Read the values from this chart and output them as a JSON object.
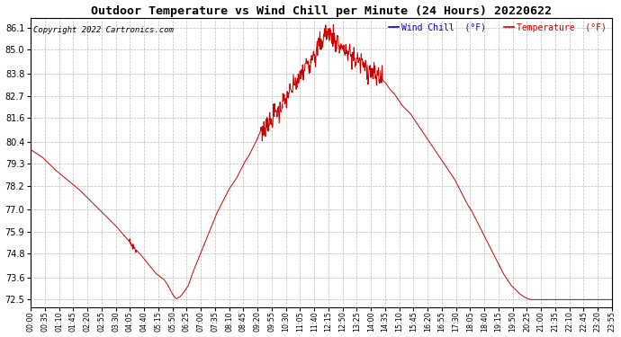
{
  "title": "Outdoor Temperature vs Wind Chill per Minute (24 Hours) 20220622",
  "copyright": "Copyright 2022 Cartronics.com",
  "legend_wind_chill": "Wind Chill  (°F)",
  "legend_temperature": "Temperature  (°F)",
  "line_color": "#cc0000",
  "wind_chill_color": "#0000cc",
  "temp_color": "#cc0000",
  "background_color": "#ffffff",
  "grid_color": "#bbbbbb",
  "title_color": "#000000",
  "copyright_color": "#000000",
  "yticks": [
    72.5,
    73.6,
    74.8,
    75.9,
    77.0,
    78.2,
    79.3,
    80.4,
    81.6,
    82.7,
    83.8,
    85.0,
    86.1
  ],
  "ylim": [
    72.1,
    86.6
  ],
  "xtick_labels": [
    "00:00",
    "00:35",
    "01:10",
    "01:45",
    "02:20",
    "02:55",
    "03:30",
    "04:05",
    "04:40",
    "05:15",
    "05:50",
    "06:25",
    "07:00",
    "07:35",
    "08:10",
    "08:45",
    "09:20",
    "09:55",
    "10:30",
    "11:05",
    "11:40",
    "12:15",
    "12:50",
    "13:25",
    "14:00",
    "14:35",
    "15:10",
    "15:45",
    "16:20",
    "16:55",
    "17:30",
    "18:05",
    "18:40",
    "19:15",
    "19:50",
    "20:25",
    "21:00",
    "21:35",
    "22:10",
    "22:45",
    "23:20",
    "23:55"
  ],
  "keypoints": [
    [
      0,
      80.0
    ],
    [
      30,
      79.6
    ],
    [
      60,
      79.0
    ],
    [
      90,
      78.5
    ],
    [
      120,
      78.0
    ],
    [
      150,
      77.4
    ],
    [
      180,
      76.8
    ],
    [
      210,
      76.2
    ],
    [
      240,
      75.5
    ],
    [
      260,
      75.0
    ],
    [
      270,
      74.8
    ],
    [
      290,
      74.3
    ],
    [
      310,
      73.8
    ],
    [
      330,
      73.5
    ],
    [
      340,
      73.2
    ],
    [
      345,
      73.0
    ],
    [
      350,
      72.8
    ],
    [
      355,
      72.65
    ],
    [
      358,
      72.58
    ],
    [
      360,
      72.55
    ],
    [
      362,
      72.55
    ],
    [
      365,
      72.6
    ],
    [
      370,
      72.65
    ],
    [
      380,
      72.9
    ],
    [
      390,
      73.2
    ],
    [
      395,
      73.5
    ],
    [
      400,
      73.8
    ],
    [
      410,
      74.3
    ],
    [
      420,
      74.8
    ],
    [
      430,
      75.3
    ],
    [
      440,
      75.8
    ],
    [
      450,
      76.3
    ],
    [
      460,
      76.8
    ],
    [
      470,
      77.2
    ],
    [
      480,
      77.6
    ],
    [
      490,
      78.0
    ],
    [
      500,
      78.3
    ],
    [
      510,
      78.6
    ],
    [
      520,
      79.0
    ],
    [
      530,
      79.4
    ],
    [
      540,
      79.7
    ],
    [
      550,
      80.1
    ],
    [
      560,
      80.5
    ],
    [
      570,
      81.0
    ],
    [
      575,
      80.7
    ],
    [
      580,
      81.2
    ],
    [
      590,
      81.5
    ],
    [
      595,
      81.3
    ],
    [
      600,
      81.7
    ],
    [
      610,
      82.0
    ],
    [
      615,
      81.8
    ],
    [
      620,
      82.2
    ],
    [
      625,
      82.5
    ],
    [
      630,
      82.3
    ],
    [
      635,
      82.7
    ],
    [
      640,
      83.0
    ],
    [
      645,
      82.8
    ],
    [
      650,
      83.2
    ],
    [
      655,
      83.5
    ],
    [
      660,
      83.2
    ],
    [
      665,
      83.6
    ],
    [
      670,
      84.0
    ],
    [
      675,
      83.7
    ],
    [
      680,
      84.2
    ],
    [
      685,
      84.5
    ],
    [
      690,
      84.2
    ],
    [
      695,
      84.6
    ],
    [
      700,
      85.0
    ],
    [
      705,
      84.6
    ],
    [
      710,
      85.1
    ],
    [
      715,
      85.5
    ],
    [
      720,
      85.2
    ],
    [
      725,
      85.7
    ],
    [
      730,
      86.0
    ],
    [
      735,
      85.6
    ],
    [
      740,
      86.0
    ],
    [
      745,
      85.5
    ],
    [
      750,
      85.8
    ],
    [
      755,
      85.2
    ],
    [
      760,
      85.6
    ],
    [
      765,
      85.0
    ],
    [
      770,
      85.3
    ],
    [
      775,
      84.8
    ],
    [
      780,
      85.1
    ],
    [
      785,
      84.6
    ],
    [
      790,
      85.0
    ],
    [
      795,
      84.5
    ],
    [
      800,
      84.8
    ],
    [
      805,
      84.3
    ],
    [
      810,
      84.7
    ],
    [
      815,
      84.2
    ],
    [
      820,
      84.6
    ],
    [
      825,
      84.0
    ],
    [
      830,
      84.3
    ],
    [
      835,
      83.8
    ],
    [
      840,
      84.1
    ],
    [
      845,
      83.7
    ],
    [
      850,
      83.9
    ],
    [
      855,
      83.6
    ],
    [
      860,
      83.8
    ],
    [
      870,
      83.5
    ],
    [
      880,
      83.3
    ],
    [
      890,
      83.0
    ],
    [
      900,
      82.8
    ],
    [
      910,
      82.5
    ],
    [
      920,
      82.2
    ],
    [
      930,
      82.0
    ],
    [
      940,
      81.8
    ],
    [
      950,
      81.5
    ],
    [
      960,
      81.2
    ],
    [
      970,
      80.9
    ],
    [
      980,
      80.6
    ],
    [
      990,
      80.3
    ],
    [
      1000,
      80.0
    ],
    [
      1010,
      79.7
    ],
    [
      1020,
      79.4
    ],
    [
      1030,
      79.1
    ],
    [
      1040,
      78.8
    ],
    [
      1050,
      78.5
    ],
    [
      1060,
      78.1
    ],
    [
      1070,
      77.7
    ],
    [
      1080,
      77.3
    ],
    [
      1090,
      77.0
    ],
    [
      1100,
      76.6
    ],
    [
      1110,
      76.2
    ],
    [
      1120,
      75.8
    ],
    [
      1130,
      75.4
    ],
    [
      1140,
      75.0
    ],
    [
      1150,
      74.6
    ],
    [
      1160,
      74.2
    ],
    [
      1170,
      73.8
    ],
    [
      1180,
      73.5
    ],
    [
      1190,
      73.2
    ],
    [
      1200,
      73.0
    ],
    [
      1210,
      72.8
    ],
    [
      1220,
      72.65
    ],
    [
      1230,
      72.55
    ],
    [
      1235,
      72.52
    ],
    [
      1239,
      72.5
    ],
    [
      1260,
      72.5
    ],
    [
      1270,
      72.5
    ],
    [
      1290,
      72.5
    ],
    [
      1320,
      72.5
    ],
    [
      1350,
      72.5
    ],
    [
      1380,
      72.5
    ],
    [
      1410,
      72.5
    ],
    [
      1439,
      72.5
    ]
  ]
}
